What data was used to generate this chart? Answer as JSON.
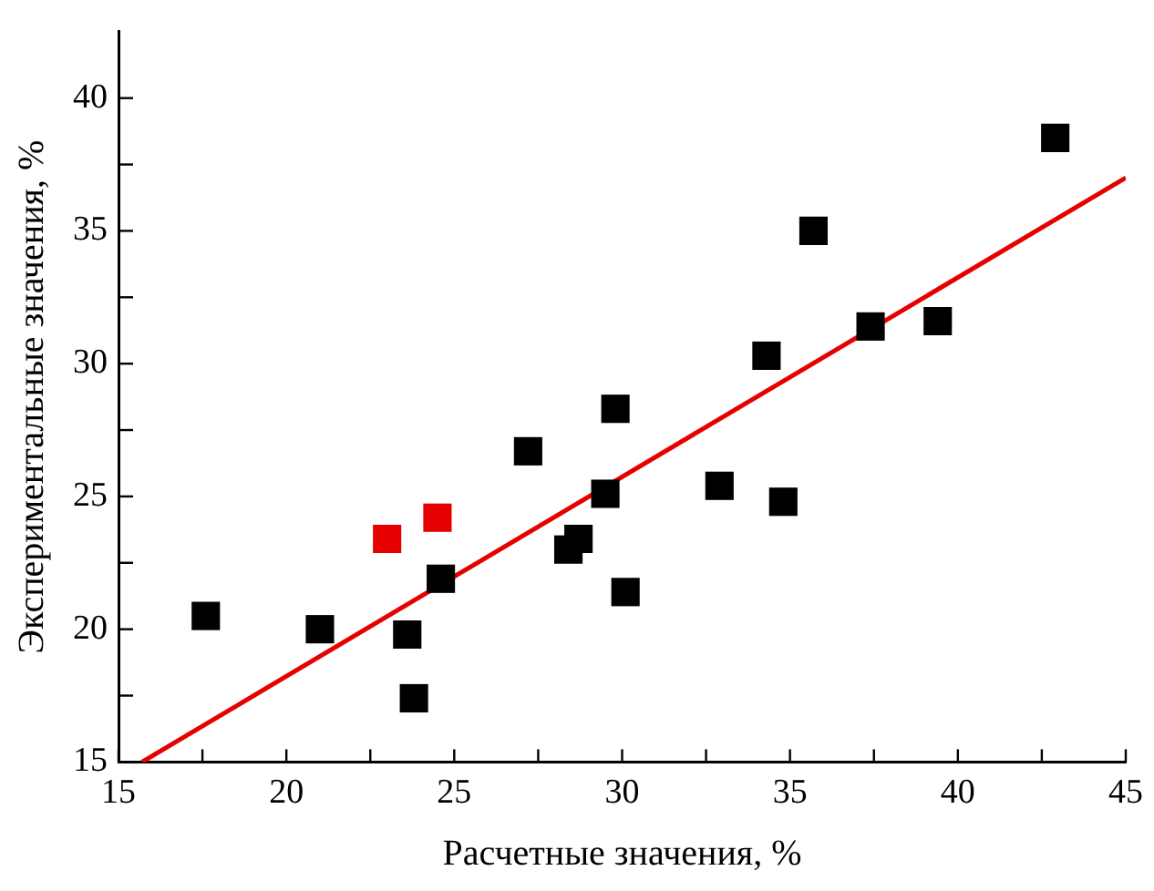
{
  "chart_data": {
    "type": "scatter",
    "xlabel": "Расчетные значения, %",
    "ylabel": "Экспериментальные значения, %",
    "xlim": [
      15,
      45
    ],
    "ylim": [
      15,
      42.5
    ],
    "xticks": [
      15,
      {
        "value": 17.5,
        "label": null
      },
      20,
      {
        "value": 22.5,
        "label": null
      },
      25,
      {
        "value": 27.5,
        "label": null
      },
      30,
      {
        "value": 32.5,
        "label": null
      },
      35,
      {
        "value": 37.5,
        "label": null
      },
      40,
      {
        "value": 42.5,
        "label": null
      },
      45
    ],
    "yticks": [
      15,
      {
        "value": 17.5,
        "label": null
      },
      20,
      {
        "value": 22.5,
        "label": null
      },
      25,
      {
        "value": 27.5,
        "label": null
      },
      30,
      {
        "value": 32.5,
        "label": null
      },
      35,
      {
        "value": 37.5,
        "label": null
      },
      40
    ],
    "grid": false,
    "legend": false,
    "marker": "square",
    "series": [
      {
        "color": "#000000",
        "x": [
          17.6,
          21.0,
          23.6,
          23.8,
          24.6,
          27.2,
          28.4,
          28.7,
          29.5,
          29.8,
          30.1,
          32.9,
          34.3,
          34.8,
          35.7,
          37.4,
          39.4,
          42.9
        ],
        "values": [
          20.5,
          20.0,
          19.8,
          17.4,
          21.9,
          26.7,
          23.0,
          23.4,
          25.1,
          28.3,
          21.4,
          25.4,
          30.3,
          24.8,
          35.0,
          31.4,
          31.6,
          38.5
        ]
      },
      {
        "color": "#e60000",
        "x": [
          23.0,
          24.5
        ],
        "values": [
          23.4,
          24.2
        ]
      },
      {
        "type": "line",
        "marker": "none",
        "color": "#e60000",
        "x": [
          15.7,
          45
        ],
        "values": [
          15,
          37
        ]
      }
    ]
  }
}
